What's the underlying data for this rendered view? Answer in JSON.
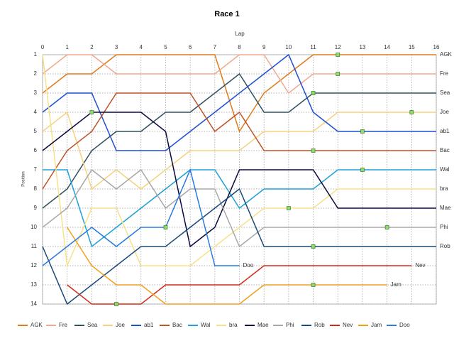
{
  "chart_data": {
    "type": "line",
    "title": "Race 1",
    "x_label": "Lap",
    "y_label": "Position",
    "x": [
      0,
      1,
      2,
      3,
      4,
      5,
      6,
      7,
      8,
      9,
      10,
      11,
      12,
      13,
      14,
      15,
      16
    ],
    "xlim": [
      0,
      16
    ],
    "xticks": [
      0,
      1,
      2,
      3,
      4,
      5,
      6,
      7,
      8,
      9,
      10,
      11,
      12,
      13,
      14,
      15,
      16
    ],
    "ylim": [
      1,
      14
    ],
    "yticks": [
      1,
      2,
      3,
      4,
      5,
      6,
      7,
      8,
      9,
      10,
      11,
      12,
      13,
      14
    ],
    "y_inverted": true,
    "grid": true,
    "legend": "bottom",
    "series": [
      {
        "name": "AGK",
        "color": "#e07b1a",
        "values": [
          3,
          2,
          2,
          1,
          1,
          1,
          1,
          1,
          5,
          3,
          2,
          1,
          1,
          1,
          1,
          1,
          1
        ],
        "pit_stops": [
          12
        ]
      },
      {
        "name": "Fre",
        "color": "#f2a88e",
        "values": [
          2,
          1,
          1,
          2,
          2,
          2,
          2,
          2,
          1,
          1,
          3,
          2,
          2,
          2,
          2,
          2,
          2
        ],
        "pit_stops": [
          12
        ]
      },
      {
        "name": "Sea",
        "color": "#2f5060",
        "values": [
          9,
          8,
          6,
          5,
          5,
          4,
          4,
          3,
          2,
          4,
          4,
          3,
          3,
          3,
          3,
          3,
          3
        ],
        "pit_stops": [
          11
        ]
      },
      {
        "name": "Joe",
        "color": "#f5d27e",
        "values": [
          5,
          4,
          8,
          7,
          8,
          7,
          6,
          6,
          6,
          5,
          5,
          5,
          4,
          4,
          4,
          4,
          4
        ],
        "pit_stops": [
          15
        ]
      },
      {
        "name": "ab1",
        "color": "#1f4fd0",
        "values": [
          4,
          3,
          3,
          6,
          6,
          6,
          5,
          4,
          3,
          2,
          1,
          4,
          5,
          5,
          5,
          5,
          5
        ],
        "pit_stops": [
          13
        ]
      },
      {
        "name": "Bac",
        "color": "#c0522a",
        "values": [
          8,
          6,
          5,
          3,
          3,
          3,
          3,
          5,
          4,
          6,
          6,
          6,
          6,
          6,
          6,
          6,
          6
        ],
        "pit_stops": [
          11
        ]
      },
      {
        "name": "Wal",
        "color": "#1ea0d8",
        "values": [
          7,
          7,
          11,
          10,
          9,
          8,
          7,
          7,
          9,
          8,
          8,
          8,
          7,
          7,
          7,
          7,
          7
        ],
        "pit_stops": [
          13
        ]
      },
      {
        "name": "bra",
        "color": "#f7e08a",
        "values": [
          1,
          12,
          9,
          9,
          12,
          12,
          12,
          11,
          10,
          9,
          9,
          9,
          8,
          8,
          8,
          8,
          8
        ],
        "pit_stops": [
          10
        ]
      },
      {
        "name": "Mae",
        "color": "#0a0a40",
        "values": [
          6,
          5,
          4,
          4,
          4,
          5,
          11,
          10,
          7,
          7,
          7,
          7,
          9,
          9,
          9,
          9,
          9
        ],
        "pit_stops": [
          2
        ]
      },
      {
        "name": "Phi",
        "color": "#a8a8a8",
        "values": [
          10,
          9,
          7,
          8,
          7,
          9,
          8,
          8,
          11,
          10,
          10,
          10,
          10,
          10,
          10,
          10,
          10
        ],
        "pit_stops": [
          14
        ]
      },
      {
        "name": "Rob",
        "color": "#1a4a7a",
        "values": [
          11,
          14,
          13,
          12,
          11,
          11,
          10,
          9,
          8,
          11,
          11,
          11,
          11,
          11,
          11,
          11,
          11
        ],
        "pit_stops": [
          11
        ]
      },
      {
        "name": "Nev",
        "color": "#d42a1a",
        "values": [
          null,
          13,
          14,
          14,
          14,
          13,
          13,
          13,
          13,
          12,
          12,
          12,
          12,
          12,
          12,
          12,
          null
        ],
        "pit_stops": [
          3
        ]
      },
      {
        "name": "Jam",
        "color": "#f0a020",
        "values": [
          null,
          10,
          12,
          13,
          13,
          14,
          14,
          14,
          14,
          13,
          13,
          13,
          13,
          13,
          13,
          null,
          null
        ],
        "pit_stops": [
          11
        ]
      },
      {
        "name": "Doo",
        "color": "#2a7ae0",
        "values": [
          12,
          11,
          10,
          11,
          10,
          10,
          7,
          12,
          12,
          null,
          null,
          null,
          null,
          null,
          null,
          null,
          null
        ],
        "pit_stops": [
          5
        ]
      }
    ]
  }
}
